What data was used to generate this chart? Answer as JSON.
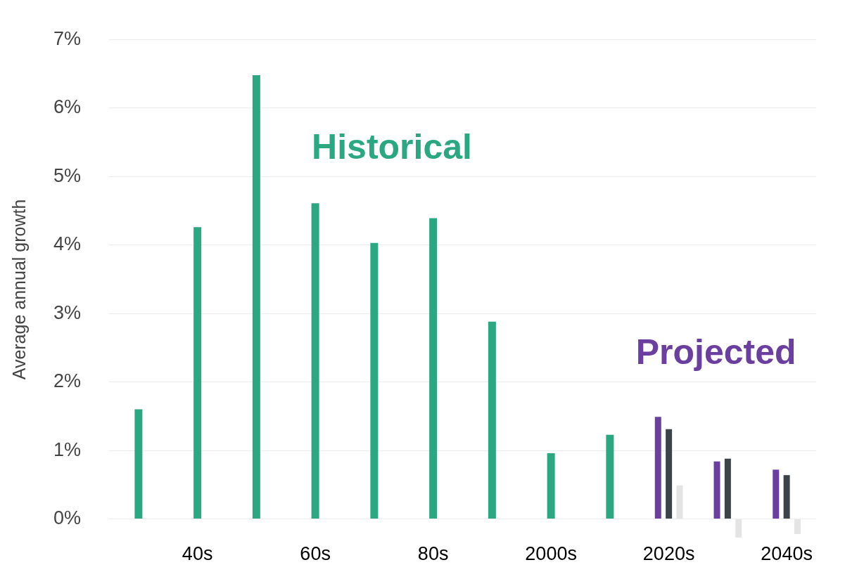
{
  "chart_data": {
    "type": "bar",
    "ylabel": "Average annual growth",
    "categories": [
      null,
      "40s",
      null,
      "60s",
      null,
      "80s",
      null,
      "2000s",
      null,
      "2020s",
      null,
      "2040s"
    ],
    "series": [
      {
        "name": "Historical",
        "color": "#2ba882",
        "values": [
          1.6,
          4.26,
          6.48,
          4.61,
          4.03,
          4.39,
          2.88,
          0.96,
          1.23,
          null,
          null,
          null
        ]
      },
      {
        "color": "#6b3fa0",
        "values": [
          null,
          null,
          null,
          null,
          null,
          null,
          null,
          null,
          null,
          1.49,
          0.84,
          0.72
        ]
      },
      {
        "color": "#3d4449",
        "values": [
          null,
          null,
          null,
          null,
          null,
          null,
          null,
          null,
          null,
          1.31,
          0.88,
          0.64
        ]
      },
      {
        "color": "#e4e4e4",
        "values": [
          null,
          null,
          null,
          null,
          null,
          null,
          null,
          null,
          null,
          0.49,
          -0.27,
          -0.22
        ]
      }
    ],
    "annotations": [
      "Projected"
    ],
    "ylim": [
      -0.3,
      7
    ],
    "yticks": [
      {
        "value": 0,
        "label": "0%"
      },
      {
        "value": 1,
        "label": "1%"
      },
      {
        "value": 2,
        "label": "2%"
      },
      {
        "value": 3,
        "label": "3%"
      },
      {
        "value": 4,
        "label": "4%"
      },
      {
        "value": 5,
        "label": "5%"
      },
      {
        "value": 6,
        "label": "6%"
      },
      {
        "value": 7,
        "label": "7%"
      }
    ],
    "grid": "y"
  }
}
